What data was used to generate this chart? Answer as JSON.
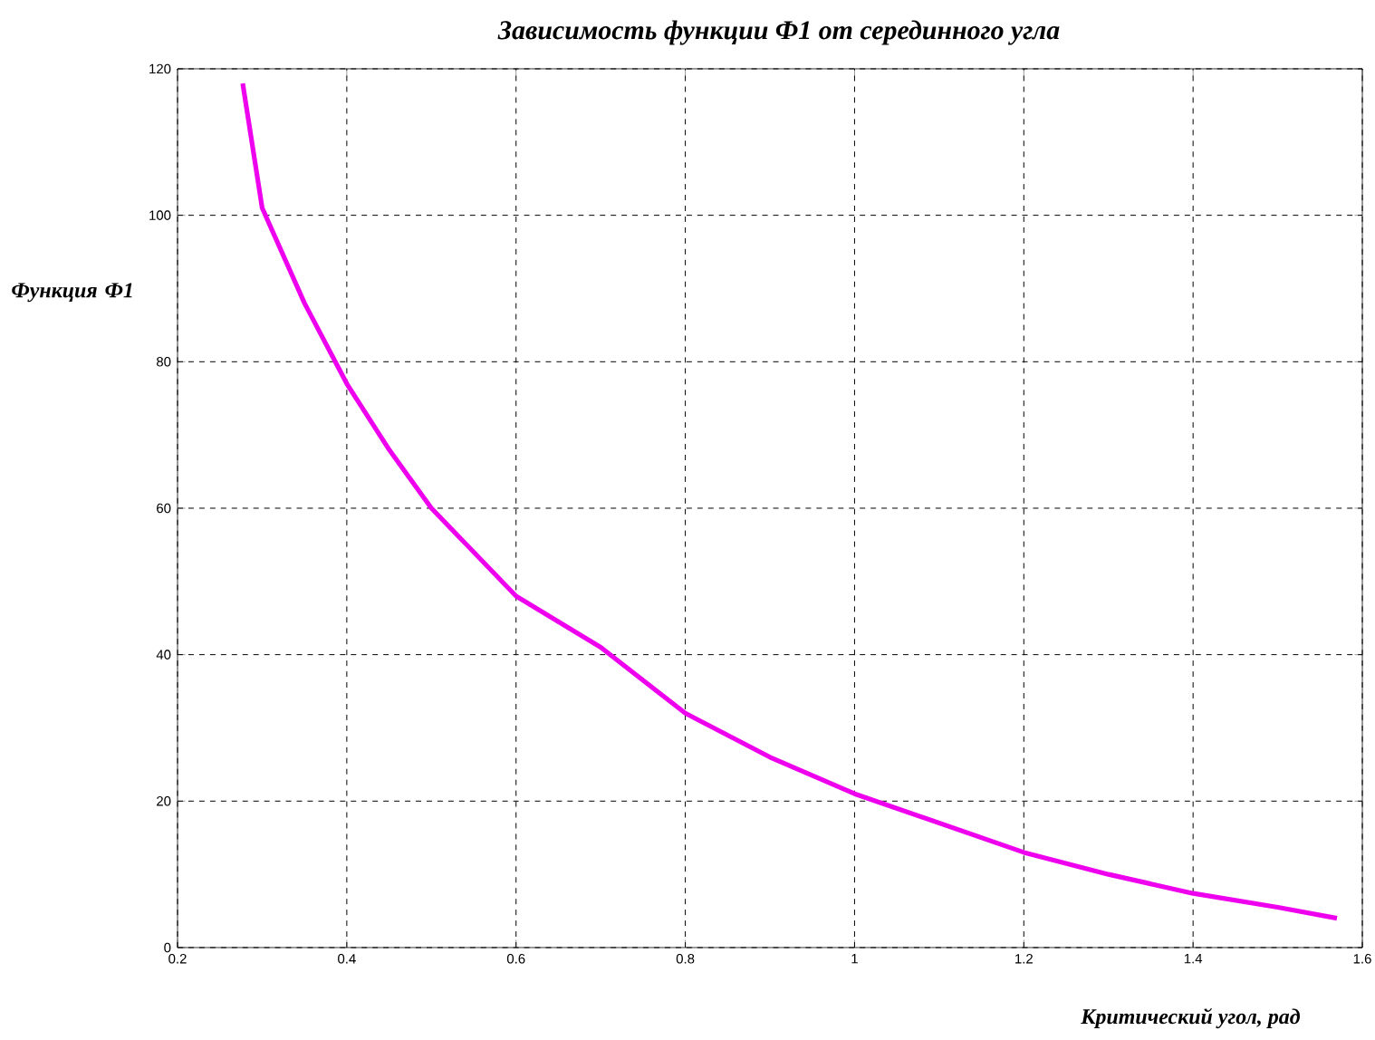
{
  "chart_data": {
    "type": "line",
    "title": "Зависимость функции Ф1 от серединного угла",
    "xlabel": "Критический угол, рад",
    "ylabel": "Функция Ф1",
    "xlim": [
      0.2,
      1.6
    ],
    "ylim": [
      0,
      120
    ],
    "xticks": [
      0.2,
      0.4,
      0.6,
      0.8,
      1,
      1.2,
      1.4,
      1.6
    ],
    "yticks": [
      0,
      20,
      40,
      60,
      80,
      100,
      120
    ],
    "grid": true,
    "line_style": "solid",
    "x": [
      0.277,
      0.3,
      0.35,
      0.4,
      0.45,
      0.5,
      0.6,
      0.7,
      0.8,
      0.9,
      1.0,
      1.1,
      1.2,
      1.3,
      1.4,
      1.5,
      1.57
    ],
    "series": [
      {
        "color": "#ee00ee",
        "values": [
          118,
          101,
          88,
          77,
          68,
          60,
          48,
          41,
          32,
          26,
          21,
          17,
          13,
          10,
          7.4,
          5.5,
          4
        ]
      }
    ]
  }
}
